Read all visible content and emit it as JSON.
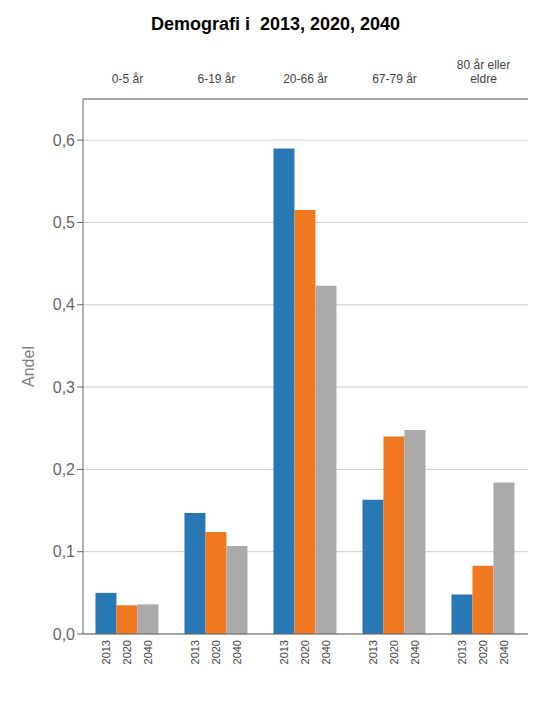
{
  "chart_data": {
    "type": "bar",
    "title": "Demografi i  2013, 2020, 2040",
    "ylabel": "Andel",
    "categories": [
      "0-5 år",
      "6-19 år",
      "20-66 år",
      "67-79 år",
      "80 år eller\neldre"
    ],
    "series": [
      {
        "name": "2013",
        "color": "#2878b5",
        "values": [
          0.05,
          0.147,
          0.59,
          0.163,
          0.048
        ]
      },
      {
        "name": "2020",
        "color": "#f07820",
        "values": [
          0.035,
          0.124,
          0.515,
          0.24,
          0.083
        ]
      },
      {
        "name": "2040",
        "color": "#aaaaaa",
        "values": [
          0.036,
          0.107,
          0.423,
          0.248,
          0.184
        ]
      }
    ],
    "ylim": [
      0,
      0.65
    ],
    "yticks": [
      {
        "value": 0.0,
        "label": "0,0"
      },
      {
        "value": 0.1,
        "label": "0,1"
      },
      {
        "value": 0.2,
        "label": "0,2"
      },
      {
        "value": 0.3,
        "label": "0,3"
      },
      {
        "value": 0.4,
        "label": "0,4"
      },
      {
        "value": 0.5,
        "label": "0,5"
      },
      {
        "value": 0.6,
        "label": "0,6"
      }
    ],
    "grid": true
  }
}
